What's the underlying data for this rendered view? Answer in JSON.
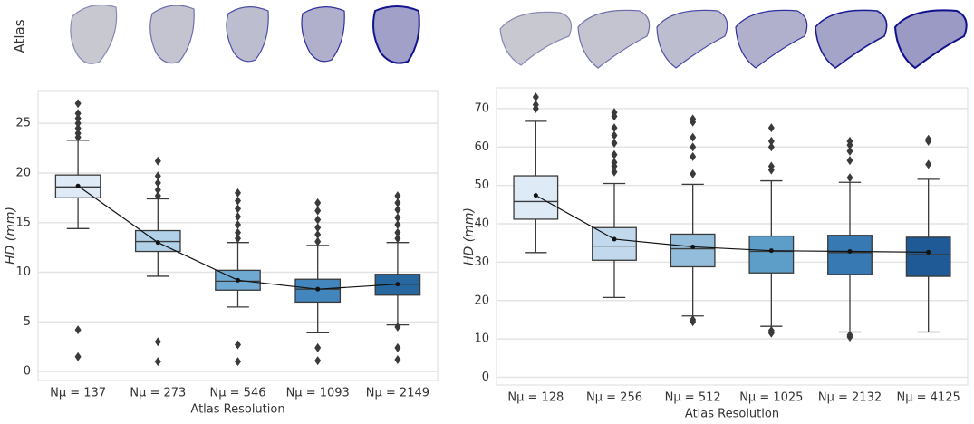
{
  "row_label": "Atlas",
  "chart_data": [
    {
      "type": "box",
      "categories": [
        "Nμ = 137",
        "Nμ = 273",
        "Nμ = 546",
        "Nμ = 1093",
        "Nμ = 2149"
      ],
      "colors": [
        "#deebf7",
        "#b0d1e8",
        "#6fa8d0",
        "#4286bd",
        "#26679f"
      ],
      "boxes": [
        {
          "whislo": 14.4,
          "q1": 17.5,
          "med": 18.6,
          "q3": 19.8,
          "whishi": 23.3,
          "fliers": [
            23.6,
            24.0,
            24.5,
            25.0,
            25.5,
            26.0,
            27.0,
            4.2,
            1.5
          ]
        },
        {
          "whislo": 9.6,
          "q1": 12.1,
          "med": 13.1,
          "q3": 14.2,
          "whishi": 17.4,
          "fliers": [
            17.7,
            18.3,
            19.0,
            19.7,
            21.2,
            3.0,
            1.0
          ]
        },
        {
          "whislo": 6.5,
          "q1": 8.2,
          "med": 9.1,
          "q3": 10.2,
          "whishi": 13.0,
          "fliers": [
            13.4,
            14.0,
            14.8,
            15.6,
            16.4,
            17.2,
            18.0,
            2.7,
            1.0
          ]
        },
        {
          "whislo": 3.9,
          "q1": 7.0,
          "med": 8.3,
          "q3": 9.3,
          "whishi": 12.7,
          "fliers": [
            13.1,
            13.8,
            14.5,
            15.3,
            16.2,
            17.0,
            2.4,
            1.1
          ]
        },
        {
          "whislo": 4.7,
          "q1": 7.7,
          "med": 8.8,
          "q3": 9.8,
          "whishi": 13.0,
          "fliers": [
            13.4,
            14.0,
            14.8,
            15.5,
            16.3,
            17.0,
            17.7,
            4.5,
            2.4,
            1.2
          ]
        }
      ],
      "means": [
        18.7,
        13.0,
        9.2,
        8.3,
        8.8
      ],
      "ylabel": "HD (mm)",
      "xlabel": "Atlas Resolution",
      "ylim": [
        -0.9,
        28.3
      ],
      "yticks": [
        0,
        5,
        10,
        15,
        20,
        25
      ],
      "grid": true
    },
    {
      "type": "box",
      "categories": [
        "Nμ = 128",
        "Nμ = 256",
        "Nμ = 512",
        "Nμ = 1025",
        "Nμ = 2132",
        "Nμ = 4125"
      ],
      "colors": [
        "#deebf7",
        "#c2d9ed",
        "#93bdda",
        "#5d9ec9",
        "#3679b3",
        "#1f5a96"
      ],
      "boxes": [
        {
          "whislo": 32.5,
          "q1": 41.2,
          "med": 45.8,
          "q3": 52.5,
          "whishi": 66.7,
          "fliers": [
            70.0,
            71.0,
            73.0
          ]
        },
        {
          "whislo": 20.8,
          "q1": 30.5,
          "med": 34.2,
          "q3": 39.0,
          "whishi": 50.5,
          "fliers": [
            53.5,
            55.0,
            56.0,
            58.0,
            61.0,
            63.0,
            65.0,
            68.0,
            69.0
          ]
        },
        {
          "whislo": 16.0,
          "q1": 28.8,
          "med": 33.5,
          "q3": 37.3,
          "whishi": 50.3,
          "fliers": [
            53.0,
            57.5,
            60.0,
            62.5,
            66.5,
            67.3,
            14.5,
            15.0
          ]
        },
        {
          "whislo": 13.3,
          "q1": 27.2,
          "med": 32.8,
          "q3": 36.8,
          "whishi": 51.2,
          "fliers": [
            54.0,
            55.0,
            60.0,
            61.5,
            65.0,
            11.5,
            12.2
          ]
        },
        {
          "whislo": 11.8,
          "q1": 26.8,
          "med": 32.5,
          "q3": 37.0,
          "whishi": 50.8,
          "fliers": [
            52.0,
            56.5,
            58.9,
            60.5,
            61.5,
            10.5,
            11.0
          ]
        },
        {
          "whislo": 11.8,
          "q1": 26.3,
          "med": 32.0,
          "q3": 36.5,
          "whishi": 51.6,
          "fliers": [
            55.5,
            61.5,
            62.0
          ]
        }
      ],
      "means": [
        47.4,
        36.0,
        34.0,
        33.0,
        32.8,
        32.6
      ],
      "ylabel": "HD (mm)",
      "xlabel": "Atlas Resolution",
      "ylim": [
        -2,
        75.4
      ],
      "yticks": [
        0,
        10,
        20,
        30,
        40,
        50,
        60,
        70
      ],
      "grid": true
    }
  ]
}
